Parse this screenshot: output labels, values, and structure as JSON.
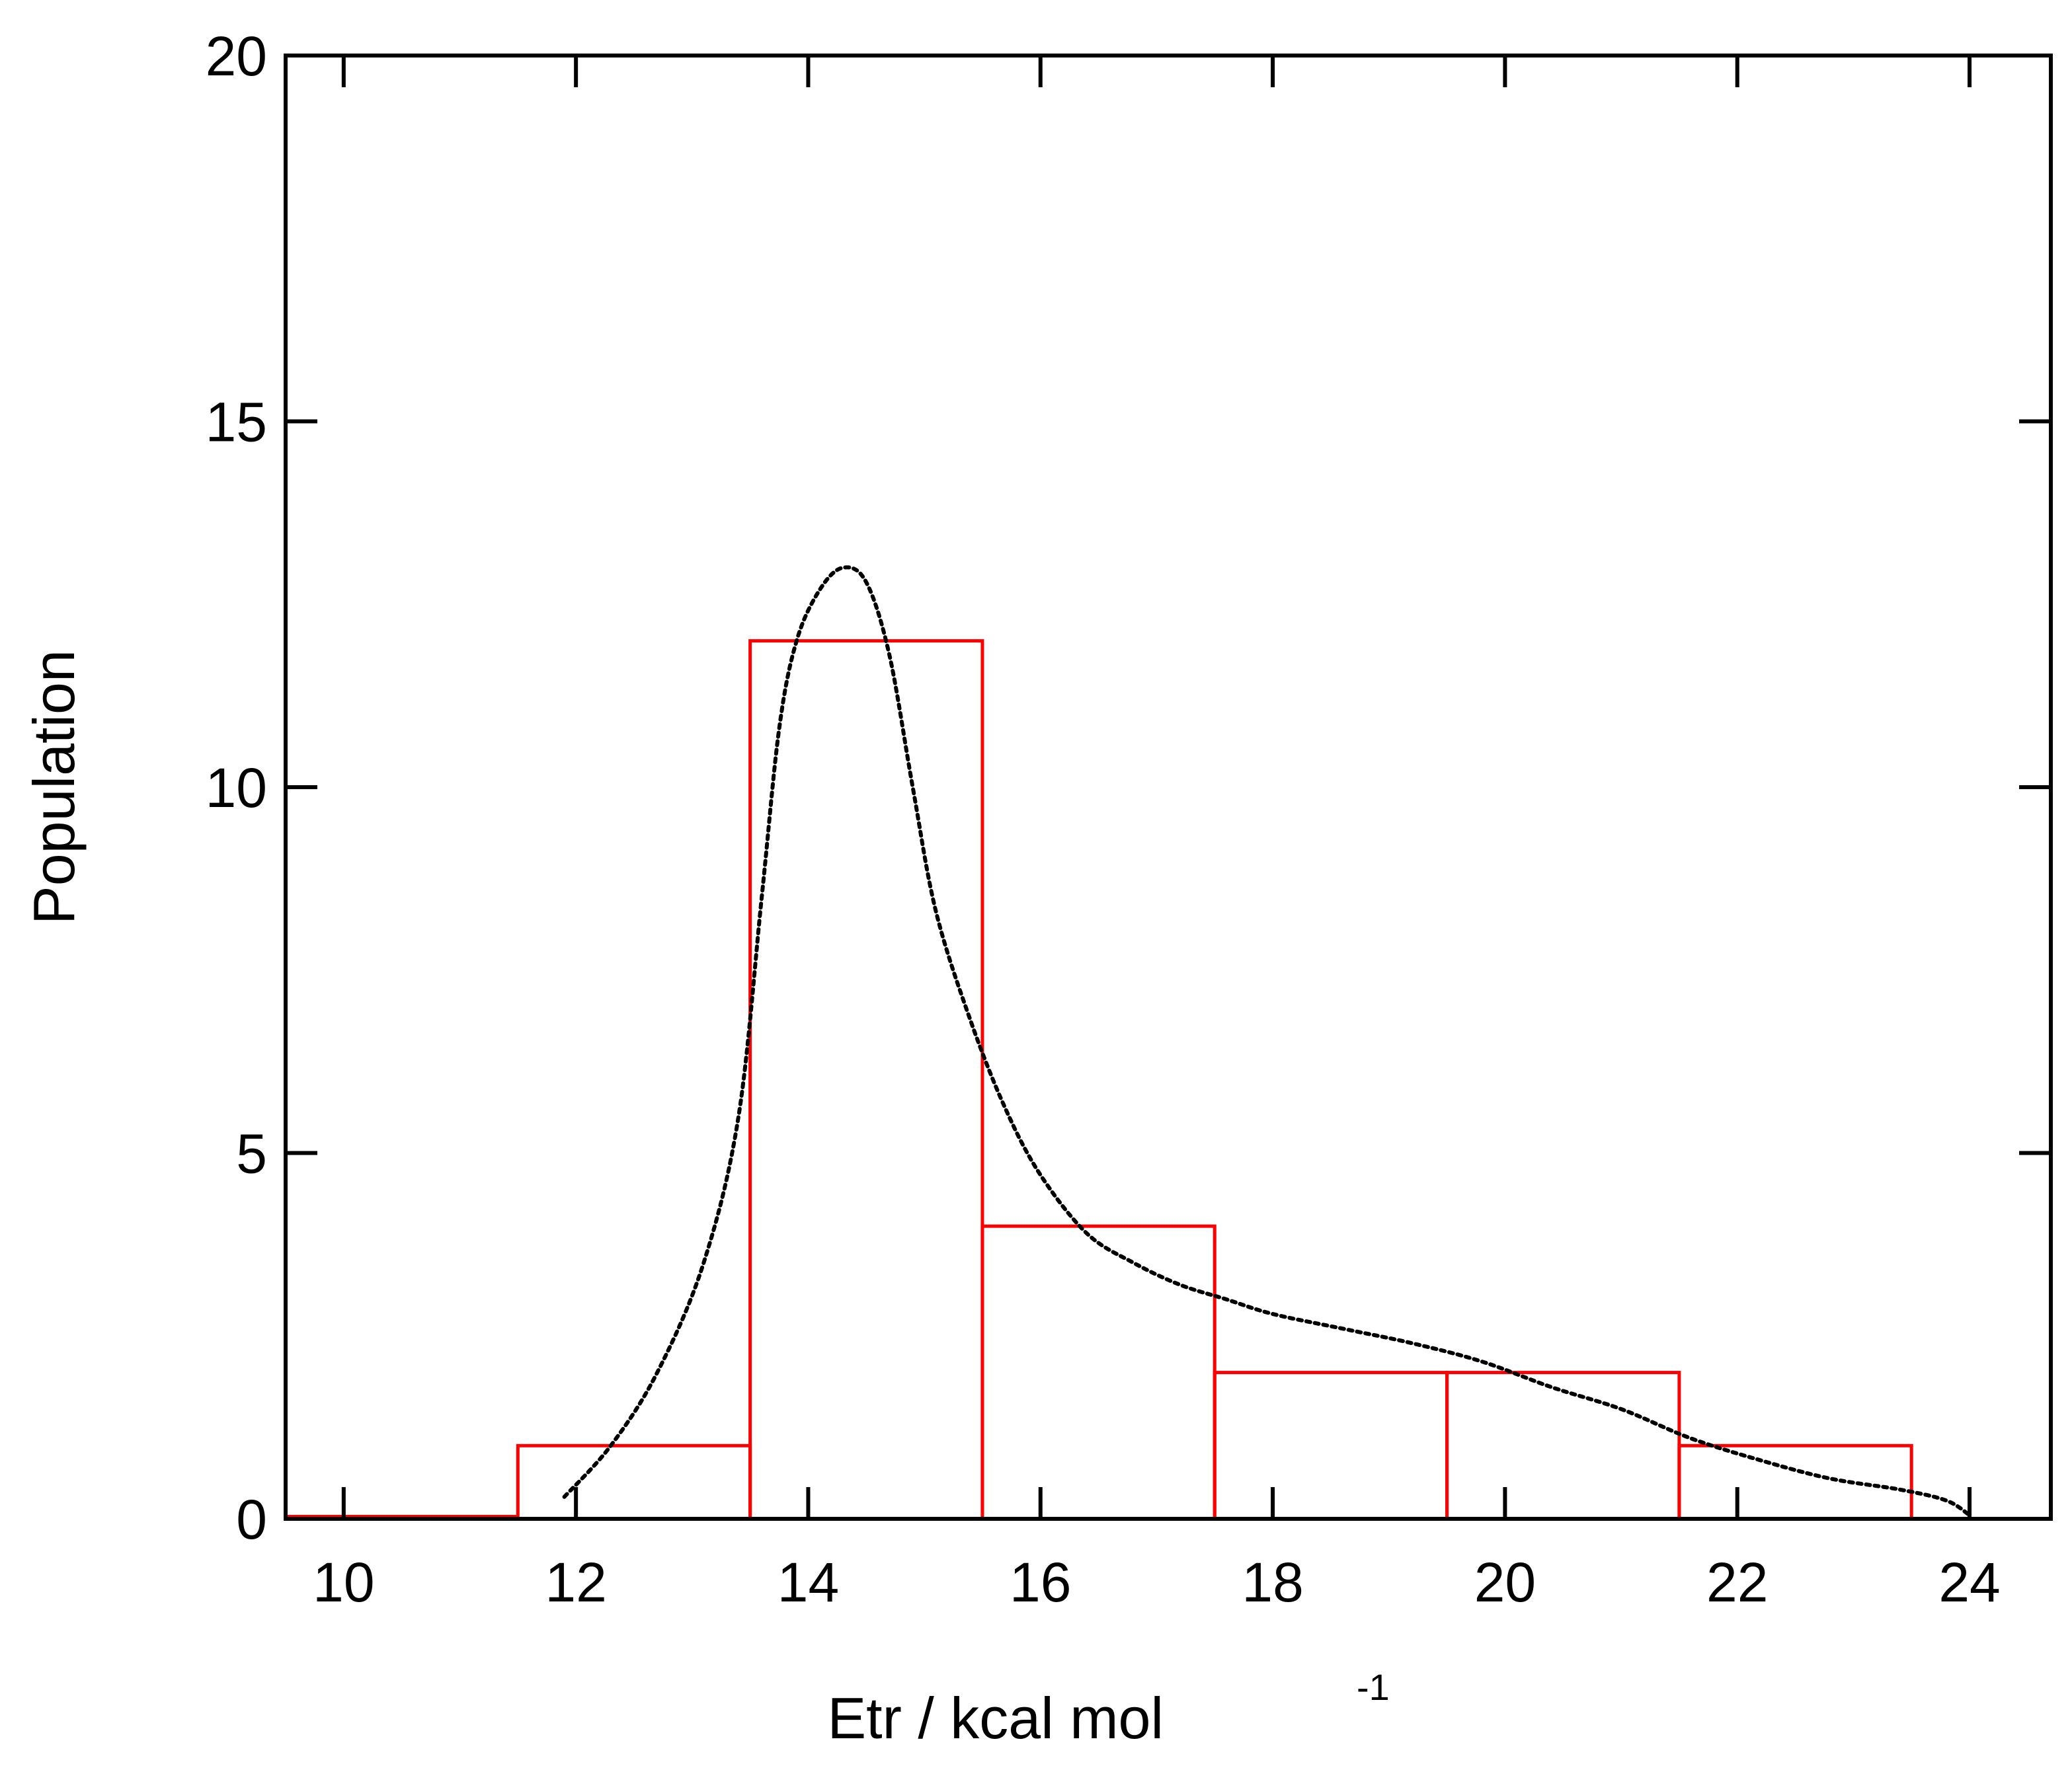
{
  "chart_data": {
    "type": "bar",
    "title": "",
    "xlabel": "Etr / kcal mol",
    "xlabel_superscript": "-1",
    "ylabel": "Population",
    "xlim": [
      9.5,
      24.7
    ],
    "ylim": [
      0,
      20
    ],
    "xticks": [
      10,
      12,
      14,
      16,
      18,
      20,
      22,
      24
    ],
    "yticks": [
      0,
      5,
      10,
      15,
      20
    ],
    "grid": false,
    "legend": "none",
    "histogram": {
      "name": "",
      "color": "#ff0000",
      "bins": [
        {
          "x0": 9.5,
          "x1": 11.5,
          "count": 0
        },
        {
          "x0": 11.5,
          "x1": 13.5,
          "count": 1
        },
        {
          "x0": 13.5,
          "x1": 15.5,
          "count": 12
        },
        {
          "x0": 15.5,
          "x1": 17.5,
          "count": 4
        },
        {
          "x0": 17.5,
          "x1": 19.5,
          "count": 2
        },
        {
          "x0": 19.5,
          "x1": 21.5,
          "count": 2
        },
        {
          "x0": 21.5,
          "x1": 23.5,
          "count": 1
        }
      ]
    },
    "density_curve": {
      "name": "",
      "color": "#000000",
      "style": "dotted",
      "x": [
        11.9,
        12.3,
        12.7,
        13.1,
        13.4,
        13.6,
        13.75,
        13.9,
        14.1,
        14.3,
        14.5,
        14.7,
        14.9,
        15.1,
        15.4,
        15.7,
        16.0,
        16.4,
        16.8,
        17.2,
        17.6,
        18.0,
        18.6,
        19.2,
        19.8,
        20.4,
        21.0,
        21.6,
        22.2,
        22.8,
        23.4,
        23.8,
        24.0
      ],
      "y": [
        0.3,
        1.0,
        2.0,
        3.5,
        5.5,
        8.5,
        10.8,
        12.0,
        12.7,
        13.0,
        12.8,
        11.8,
        10.0,
        8.3,
        6.8,
        5.6,
        4.7,
        3.9,
        3.5,
        3.2,
        3.0,
        2.8,
        2.6,
        2.4,
        2.15,
        1.8,
        1.5,
        1.1,
        0.8,
        0.55,
        0.4,
        0.25,
        0.05
      ]
    }
  }
}
